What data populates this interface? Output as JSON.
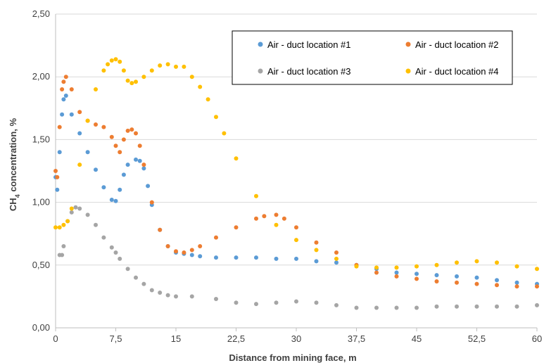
{
  "chart_data": {
    "type": "scatter",
    "xlabel": "Distance from mining face, m",
    "ylabel_prefix": "CH",
    "ylabel_sub": "4",
    "ylabel_suffix": " concentration, %",
    "xlim": [
      0,
      60
    ],
    "ylim": [
      0,
      2.5
    ],
    "x_ticks": [
      0,
      7.5,
      15,
      22.5,
      30,
      37.5,
      45,
      52.5,
      60
    ],
    "x_tick_labels": [
      "0",
      "7,5",
      "15",
      "22,5",
      "30",
      "37,5",
      "45",
      "52,5",
      "60"
    ],
    "y_ticks": [
      0,
      0.5,
      1.0,
      1.5,
      2.0,
      2.5
    ],
    "y_tick_labels": [
      "0,00",
      "0,50",
      "1,00",
      "1,50",
      "2,00",
      "2,50"
    ],
    "grid": "horizontal",
    "legend_position": "top-right",
    "series": [
      {
        "name": "Air - duct location #1",
        "color": "#5B9BD5",
        "x": [
          0,
          0.2,
          0.5,
          0.8,
          1.0,
          1.3,
          2.0,
          3.0,
          4.0,
          5.0,
          6.0,
          7.0,
          7.5,
          8.0,
          8.5,
          9.0,
          10.0,
          10.5,
          11.0,
          11.5,
          12.0,
          13.0,
          14.0,
          15.0,
          16.0,
          17.0,
          18.0,
          20.0,
          22.5,
          25.0,
          27.5,
          30.0,
          32.5,
          35.0,
          37.5,
          40.0,
          42.5,
          45.0,
          47.5,
          50.0,
          52.5,
          55.0,
          57.5,
          60.0
        ],
        "y": [
          1.2,
          1.1,
          1.4,
          1.7,
          1.82,
          1.85,
          1.7,
          1.55,
          1.4,
          1.26,
          1.12,
          1.02,
          1.01,
          1.1,
          1.22,
          1.3,
          1.34,
          1.33,
          1.27,
          1.13,
          0.98,
          0.78,
          0.65,
          0.6,
          0.59,
          0.58,
          0.57,
          0.56,
          0.56,
          0.56,
          0.55,
          0.55,
          0.53,
          0.52,
          0.5,
          0.47,
          0.44,
          0.43,
          0.42,
          0.41,
          0.4,
          0.38,
          0.36,
          0.35
        ]
      },
      {
        "name": "Air - duct location #2",
        "color": "#ED7D31",
        "x": [
          0,
          0.2,
          0.5,
          0.8,
          1.0,
          1.3,
          2.0,
          3.0,
          4.0,
          5.0,
          6.0,
          7.0,
          7.5,
          8.0,
          8.5,
          9.0,
          9.5,
          10.0,
          10.5,
          11.0,
          12.0,
          13.0,
          14.0,
          15.0,
          16.0,
          17.0,
          18.0,
          20.0,
          22.5,
          25.0,
          26.0,
          27.5,
          28.5,
          30.0,
          32.5,
          35.0,
          37.5,
          40.0,
          42.5,
          45.0,
          47.5,
          50.0,
          52.5,
          55.0,
          57.5,
          60.0
        ],
        "y": [
          1.25,
          1.2,
          1.6,
          1.9,
          1.96,
          2.0,
          1.9,
          1.72,
          1.65,
          1.62,
          1.6,
          1.52,
          1.45,
          1.4,
          1.5,
          1.57,
          1.58,
          1.55,
          1.45,
          1.3,
          1.0,
          0.78,
          0.65,
          0.61,
          0.6,
          0.62,
          0.65,
          0.72,
          0.8,
          0.87,
          0.89,
          0.9,
          0.87,
          0.8,
          0.68,
          0.6,
          0.5,
          0.44,
          0.41,
          0.39,
          0.37,
          0.36,
          0.35,
          0.34,
          0.33,
          0.33
        ]
      },
      {
        "name": "Air - duct location #3",
        "color": "#A5A5A5",
        "x": [
          0.5,
          0.8,
          1.0,
          1.5,
          2.0,
          2.5,
          3.0,
          4.0,
          5.0,
          6.0,
          7.0,
          7.5,
          8.0,
          9.0,
          10.0,
          11.0,
          12.0,
          13.0,
          14.0,
          15.0,
          17.0,
          20.0,
          22.5,
          25.0,
          27.5,
          30.0,
          32.5,
          35.0,
          37.5,
          40.0,
          42.5,
          45.0,
          47.5,
          50.0,
          52.5,
          55.0,
          57.5,
          60.0
        ],
        "y": [
          0.58,
          0.58,
          0.65,
          0.85,
          0.92,
          0.96,
          0.95,
          0.9,
          0.82,
          0.72,
          0.64,
          0.6,
          0.55,
          0.47,
          0.4,
          0.35,
          0.3,
          0.28,
          0.26,
          0.25,
          0.25,
          0.23,
          0.2,
          0.19,
          0.2,
          0.21,
          0.2,
          0.18,
          0.16,
          0.16,
          0.16,
          0.16,
          0.17,
          0.17,
          0.17,
          0.17,
          0.17,
          0.18
        ]
      },
      {
        "name": "Air - duct location #4",
        "color": "#FFC000",
        "x": [
          0,
          0.5,
          1.0,
          1.5,
          2.0,
          3.0,
          4.0,
          5.0,
          6.0,
          6.5,
          7.0,
          7.5,
          8.0,
          8.5,
          9.0,
          9.5,
          10.0,
          11.0,
          12.0,
          13.0,
          14.0,
          15.0,
          16.0,
          17.0,
          18.0,
          19.0,
          20.0,
          21.0,
          22.5,
          25.0,
          27.5,
          30.0,
          32.5,
          35.0,
          37.5,
          40.0,
          42.5,
          45.0,
          47.5,
          50.0,
          52.5,
          55.0,
          57.5,
          60.0
        ],
        "y": [
          0.8,
          0.8,
          0.82,
          0.85,
          0.95,
          1.3,
          1.65,
          1.9,
          2.05,
          2.1,
          2.13,
          2.14,
          2.12,
          2.05,
          1.97,
          1.95,
          1.96,
          2.0,
          2.05,
          2.09,
          2.1,
          2.08,
          2.08,
          2.0,
          1.92,
          1.82,
          1.68,
          1.55,
          1.35,
          1.05,
          0.82,
          0.7,
          0.62,
          0.55,
          0.49,
          0.48,
          0.48,
          0.49,
          0.5,
          0.52,
          0.53,
          0.52,
          0.49,
          0.47
        ]
      }
    ]
  }
}
